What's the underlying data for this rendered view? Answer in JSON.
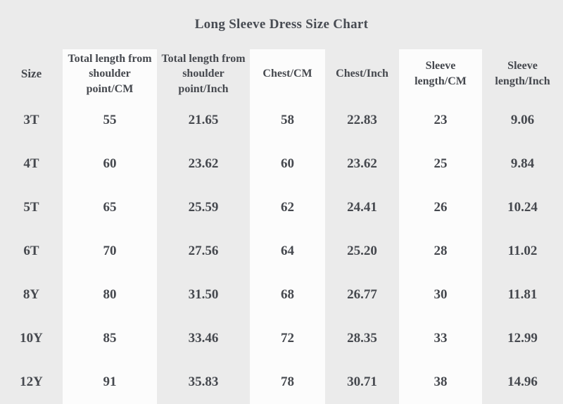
{
  "title": "Long Sleeve Dress Size Chart",
  "colors": {
    "background": "#ebebeb",
    "column_stripe": "#fcfcfc",
    "text": "#45484e"
  },
  "chart_data": {
    "type": "table",
    "title": "Long Sleeve Dress Size Chart",
    "columns": [
      "Size",
      "Total length from shoulder point/CM",
      "Total length from shoulder point/Inch",
      "Chest/CM",
      "Chest/Inch",
      "Sleeve length/CM",
      "Sleeve length/Inch"
    ],
    "rows": [
      [
        "3T",
        "55",
        "21.65",
        "58",
        "22.83",
        "23",
        "9.06"
      ],
      [
        "4T",
        "60",
        "23.62",
        "60",
        "23.62",
        "25",
        "9.84"
      ],
      [
        "5T",
        "65",
        "25.59",
        "62",
        "24.41",
        "26",
        "10.24"
      ],
      [
        "6T",
        "70",
        "27.56",
        "64",
        "25.20",
        "28",
        "11.02"
      ],
      [
        "8Y",
        "80",
        "31.50",
        "68",
        "26.77",
        "30",
        "11.81"
      ],
      [
        "10Y",
        "85",
        "33.46",
        "72",
        "28.35",
        "33",
        "12.99"
      ],
      [
        "12Y",
        "91",
        "35.83",
        "78",
        "30.71",
        "38",
        "14.96"
      ]
    ]
  }
}
